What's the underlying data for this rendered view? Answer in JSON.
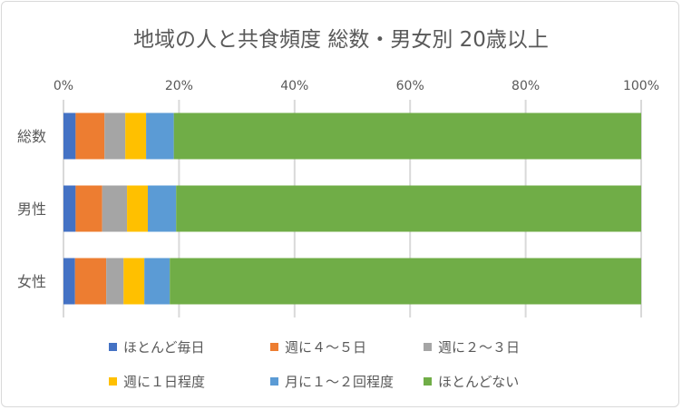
{
  "chart_data": {
    "type": "bar",
    "orientation": "horizontal",
    "stacked": "percent",
    "title": "地域の人と共食頻度 総数・男女別 20歳以上",
    "categories": [
      "総数",
      "男性",
      "女性"
    ],
    "xlim": [
      0,
      100
    ],
    "x_ticks": [
      "0%",
      "20%",
      "40%",
      "60%",
      "80%",
      "100%"
    ],
    "grid": true,
    "legend_position": "bottom",
    "series": [
      {
        "name": "ほとんど毎日",
        "color": "#4472C4",
        "values": [
          2.1,
          2.1,
          2.0
        ]
      },
      {
        "name": "週に４～５日",
        "color": "#ED7D31",
        "values": [
          5.0,
          4.6,
          5.4
        ]
      },
      {
        "name": "週に２～３日",
        "color": "#A5A5A5",
        "values": [
          3.6,
          4.3,
          3.0
        ]
      },
      {
        "name": "週に１日程度",
        "color": "#FFC000",
        "values": [
          3.6,
          3.6,
          3.6
        ]
      },
      {
        "name": "月に１～２回程度",
        "color": "#5B9BD5",
        "values": [
          4.8,
          4.9,
          4.4
        ]
      },
      {
        "name": "ほとんどない",
        "color": "#70AD47",
        "values": [
          80.9,
          80.5,
          81.6
        ]
      }
    ]
  }
}
